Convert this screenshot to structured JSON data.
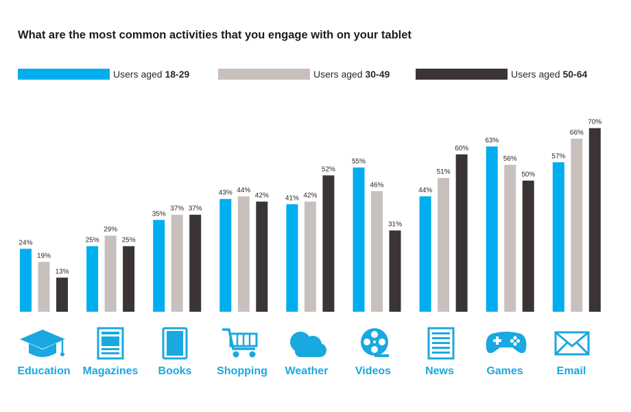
{
  "title": "What are the most common activities that you engage with on your tablet",
  "colors": {
    "series1": "#00aeef",
    "series2": "#c8c0bd",
    "series3": "#3a3534",
    "label": "#19a8e0",
    "text": "#2b2727"
  },
  "legend": [
    {
      "prefix": "Users aged ",
      "range": "18-29"
    },
    {
      "prefix": "Users aged ",
      "range": "30-49"
    },
    {
      "prefix": "Users aged ",
      "range": "50-64"
    }
  ],
  "chart_data": {
    "type": "bar",
    "title": "What are the most common activities that you engage with on your tablet",
    "categories": [
      "Education",
      "Magazines",
      "Books",
      "Shopping",
      "Weather",
      "Videos",
      "News",
      "Games",
      "Email"
    ],
    "series": [
      {
        "name": "Users aged 18-29",
        "values": [
          24,
          25,
          35,
          43,
          41,
          55,
          44,
          63,
          57
        ]
      },
      {
        "name": "Users aged 30-49",
        "values": [
          19,
          29,
          37,
          44,
          42,
          46,
          51,
          56,
          66
        ]
      },
      {
        "name": "Users aged 50-64",
        "values": [
          13,
          25,
          37,
          42,
          52,
          31,
          60,
          50,
          70
        ]
      }
    ],
    "value_suffix": "%",
    "ylim": [
      0,
      70
    ],
    "grid": false,
    "legend_position": "top"
  },
  "icons": [
    "graduation-cap-icon",
    "magazine-icon",
    "book-icon",
    "shopping-cart-icon",
    "cloud-icon",
    "film-reel-icon",
    "newspaper-icon",
    "gamepad-icon",
    "envelope-icon"
  ]
}
